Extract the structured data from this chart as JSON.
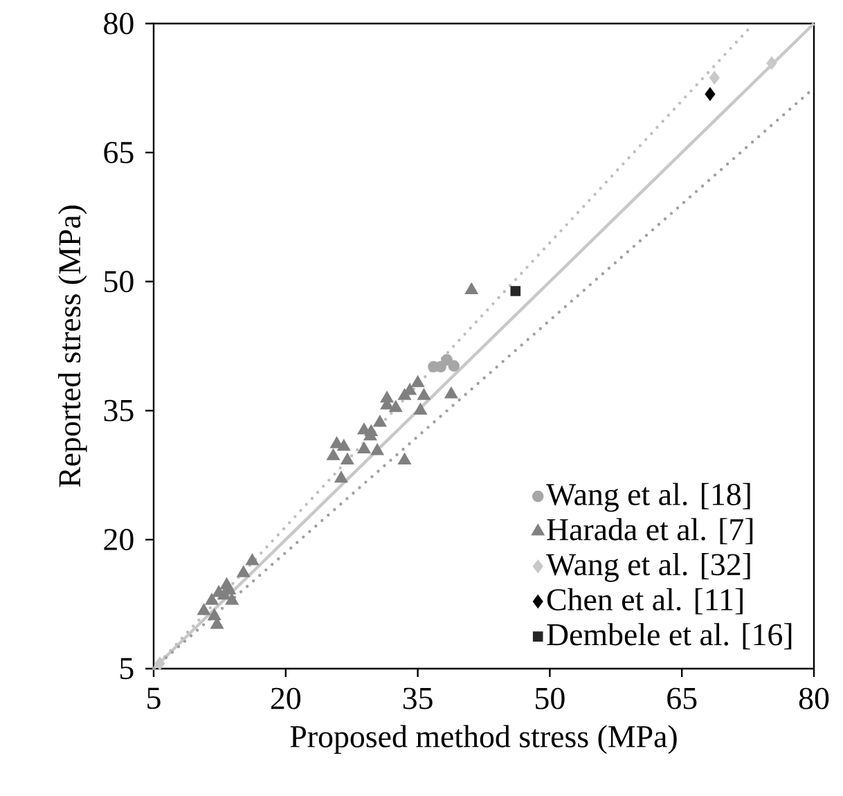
{
  "chart_data": {
    "type": "scatter",
    "xlabel": "Proposed method stress (MPa)",
    "ylabel": "Reported stress (MPa)",
    "xlim": [
      5,
      80
    ],
    "ylim": [
      5,
      80
    ],
    "xticks": [
      5,
      20,
      35,
      50,
      65,
      80
    ],
    "yticks": [
      5,
      20,
      35,
      50,
      65,
      80
    ],
    "grid": false,
    "legend": "bottom right",
    "series": [
      {
        "type": "line",
        "color": "#c8c8c8",
        "line_style": "solid",
        "x": [
          5,
          80
        ],
        "values": [
          5,
          80
        ]
      },
      {
        "type": "line",
        "color": "#bfbfbf",
        "line_style": "dotted",
        "x": [
          5,
          72.8
        ],
        "values": [
          5,
          79.6
        ]
      },
      {
        "type": "line",
        "color": "#a0a0a0",
        "line_style": "dotted",
        "x": [
          5,
          80
        ],
        "values": [
          5,
          72.5
        ]
      },
      {
        "name": "Wang et al. [18]",
        "color": "#a6a6a6",
        "marker": "circle",
        "x": [
          36.8,
          37.6,
          38.3,
          39.1
        ],
        "values": [
          40.1,
          40.1,
          40.9,
          40.2
        ]
      },
      {
        "name": "Harada et al. [7]",
        "color": "#808080",
        "marker": "triangle",
        "x": [
          41.1,
          35.0,
          34.1,
          33.5,
          35.7,
          38.8,
          31.5,
          31.5,
          32.5,
          35.3,
          30.7,
          28.9,
          29.7,
          29.6,
          25.8,
          26.6,
          25.4,
          27.0,
          28.9,
          30.4,
          33.5,
          26.3,
          16.2,
          15.2,
          13.3,
          12.4,
          13.0,
          13.9,
          11.6,
          10.7,
          11.9,
          12.2,
          13.6
        ],
        "values": [
          49.0,
          38.2,
          37.3,
          36.7,
          36.7,
          36.9,
          36.4,
          35.6,
          35.3,
          35.0,
          33.6,
          32.7,
          32.5,
          32.0,
          31.1,
          30.8,
          29.7,
          29.2,
          30.5,
          30.3,
          29.2,
          27.1,
          17.5,
          16.1,
          14.7,
          13.8,
          13.5,
          12.9,
          12.9,
          11.7,
          11.1,
          10.1,
          14.1
        ]
      },
      {
        "name": "Wang et al. [32]",
        "color": "#c8c8c8",
        "marker": "diamond",
        "x": [
          68.7,
          75.2,
          5.7
        ],
        "values": [
          73.7,
          75.4,
          5.6
        ]
      },
      {
        "name": "Chen et al. [11]",
        "color": "#000000",
        "marker": "diamond",
        "x": [
          68.2
        ],
        "values": [
          71.8
        ]
      },
      {
        "name": "Dembele et al. [16]",
        "color": "#262626",
        "marker": "square",
        "x": [
          46.1
        ],
        "values": [
          48.9
        ]
      }
    ]
  }
}
